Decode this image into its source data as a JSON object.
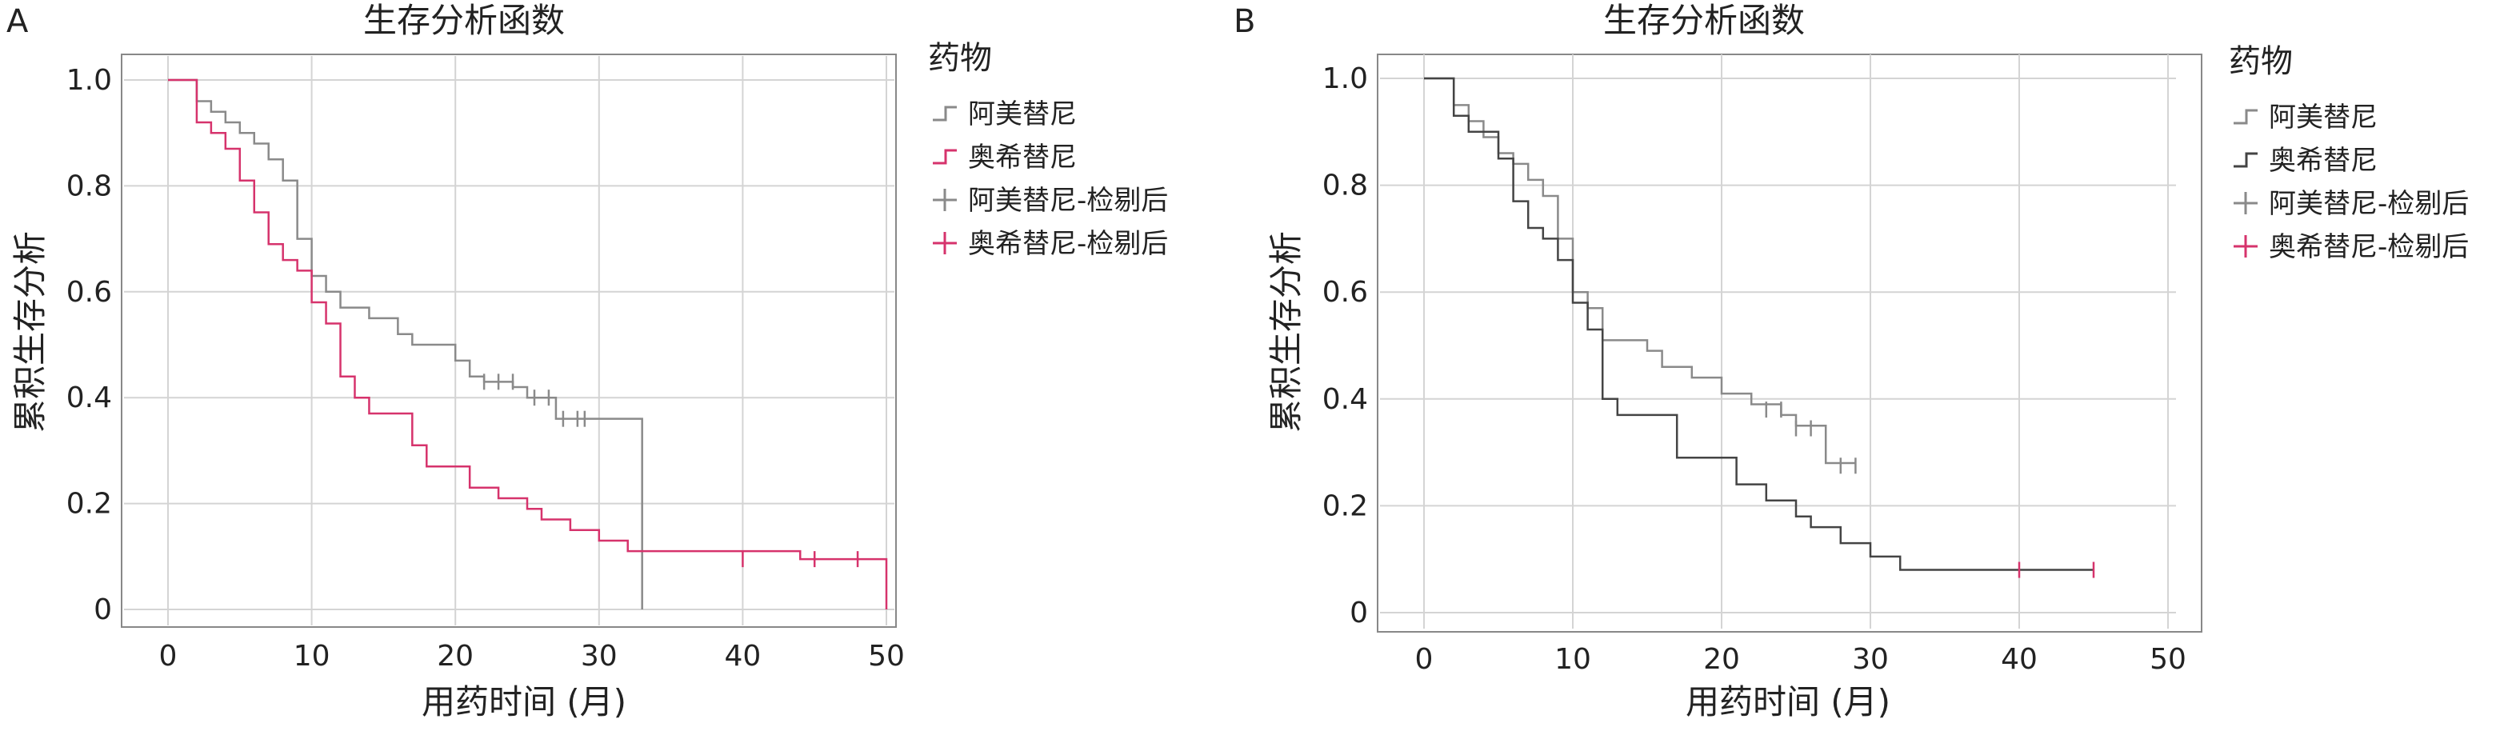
{
  "chart_data": [
    {
      "panel": "A",
      "type": "line",
      "title": "生存分析函数",
      "xlabel": "用药时间 (月)",
      "ylabel": "累积生存分析",
      "xlim": [
        0,
        50
      ],
      "ylim": [
        0,
        1.0
      ],
      "xticks": [
        0,
        10,
        20,
        30,
        40,
        50
      ],
      "yticks": [
        0,
        0.2,
        0.4,
        0.6,
        0.8,
        1.0
      ],
      "ytick_labels": [
        "0",
        "0.2",
        "0.4",
        "0.6",
        "0.8",
        "1.0"
      ],
      "grid": true,
      "legend": {
        "title": "药物",
        "position": "right",
        "entries": [
          {
            "label": "阿美替尼",
            "style": "step",
            "color": "#8a8a8a"
          },
          {
            "label": "奥希替尼",
            "style": "step",
            "color": "#d6336c"
          },
          {
            "label": "阿美替尼-检剔后",
            "style": "censor",
            "color": "#8a8a8a"
          },
          {
            "label": "奥希替尼-检剔后",
            "style": "censor",
            "color": "#d6336c"
          }
        ]
      },
      "series": [
        {
          "name": "阿美替尼",
          "color": "#8a8a8a",
          "steps": [
            [
              0,
              1.0
            ],
            [
              2,
              0.96
            ],
            [
              3,
              0.94
            ],
            [
              4,
              0.92
            ],
            [
              5,
              0.9
            ],
            [
              6,
              0.88
            ],
            [
              7,
              0.85
            ],
            [
              8,
              0.81
            ],
            [
              9,
              0.7
            ],
            [
              10,
              0.63
            ],
            [
              11,
              0.6
            ],
            [
              12,
              0.57
            ],
            [
              14,
              0.55
            ],
            [
              16,
              0.52
            ],
            [
              17,
              0.5
            ],
            [
              20,
              0.47
            ],
            [
              21,
              0.44
            ],
            [
              22,
              0.43
            ],
            [
              24,
              0.42
            ],
            [
              25,
              0.4
            ],
            [
              27,
              0.36
            ],
            [
              29,
              0.36
            ],
            [
              33,
              0.0
            ]
          ],
          "end_x": 33,
          "censored": [
            [
              22,
              0.43
            ],
            [
              23,
              0.43
            ],
            [
              24,
              0.43
            ],
            [
              25.5,
              0.4
            ],
            [
              26.5,
              0.4
            ],
            [
              27.5,
              0.36
            ],
            [
              28.5,
              0.36
            ],
            [
              29,
              0.36
            ]
          ]
        },
        {
          "name": "奥希替尼",
          "color": "#d6336c",
          "steps": [
            [
              0,
              1.0
            ],
            [
              2,
              0.92
            ],
            [
              3,
              0.9
            ],
            [
              4,
              0.87
            ],
            [
              5,
              0.81
            ],
            [
              6,
              0.75
            ],
            [
              7,
              0.69
            ],
            [
              8,
              0.66
            ],
            [
              9,
              0.64
            ],
            [
              10,
              0.58
            ],
            [
              11,
              0.54
            ],
            [
              12,
              0.44
            ],
            [
              13,
              0.4
            ],
            [
              14,
              0.37
            ],
            [
              17,
              0.31
            ],
            [
              18,
              0.27
            ],
            [
              21,
              0.23
            ],
            [
              23,
              0.21
            ],
            [
              25,
              0.19
            ],
            [
              26,
              0.17
            ],
            [
              28,
              0.15
            ],
            [
              30,
              0.13
            ],
            [
              32,
              0.11
            ],
            [
              44,
              0.095
            ],
            [
              50,
              0.0
            ]
          ],
          "end_x": 50,
          "censored": [
            [
              40,
              0.095
            ],
            [
              45,
              0.095
            ],
            [
              48,
              0.095
            ]
          ]
        }
      ]
    },
    {
      "panel": "B",
      "type": "line",
      "title": "生存分析函数",
      "xlabel": "用药时间 (月)",
      "ylabel": "累积生存分析",
      "xlim": [
        0,
        50
      ],
      "ylim": [
        0,
        1.0
      ],
      "xticks": [
        0,
        10,
        20,
        30,
        40,
        50
      ],
      "yticks": [
        0,
        0.2,
        0.4,
        0.6,
        0.8,
        1.0
      ],
      "ytick_labels": [
        "0",
        "0.2",
        "0.4",
        "0.6",
        "0.8",
        "1.0"
      ],
      "grid": true,
      "legend": {
        "title": "药物",
        "position": "right",
        "entries": [
          {
            "label": "阿美替尼",
            "style": "step",
            "color": "#8a8a8a"
          },
          {
            "label": "奥希替尼",
            "style": "step",
            "color": "#444444"
          },
          {
            "label": "阿美替尼-检剔后",
            "style": "censor",
            "color": "#8a8a8a"
          },
          {
            "label": "奥希替尼-检剔后",
            "style": "censor",
            "color": "#d6336c"
          }
        ]
      },
      "series": [
        {
          "name": "阿美替尼",
          "color": "#8a8a8a",
          "steps": [
            [
              0,
              1.0
            ],
            [
              2,
              0.95
            ],
            [
              3,
              0.92
            ],
            [
              4,
              0.89
            ],
            [
              5,
              0.86
            ],
            [
              6,
              0.84
            ],
            [
              7,
              0.81
            ],
            [
              8,
              0.78
            ],
            [
              9,
              0.7
            ],
            [
              10,
              0.6
            ],
            [
              11,
              0.57
            ],
            [
              12,
              0.51
            ],
            [
              15,
              0.49
            ],
            [
              16,
              0.46
            ],
            [
              18,
              0.44
            ],
            [
              20,
              0.41
            ],
            [
              22,
              0.39
            ],
            [
              24,
              0.37
            ],
            [
              25,
              0.35
            ],
            [
              27,
              0.28
            ],
            [
              29,
              0.28
            ]
          ],
          "end_x": 29,
          "censored": [
            [
              23,
              0.38
            ],
            [
              24,
              0.38
            ],
            [
              25,
              0.345
            ],
            [
              26,
              0.345
            ],
            [
              28,
              0.275
            ],
            [
              29,
              0.275
            ]
          ]
        },
        {
          "name": "奥希替尼",
          "color": "#444444",
          "hl_color": "#d6336c",
          "steps": [
            [
              0,
              1.0
            ],
            [
              2,
              0.93
            ],
            [
              3,
              0.9
            ],
            [
              5,
              0.85
            ],
            [
              6,
              0.77
            ],
            [
              7,
              0.72
            ],
            [
              8,
              0.7
            ],
            [
              9,
              0.66
            ],
            [
              10,
              0.58
            ],
            [
              11,
              0.53
            ],
            [
              12,
              0.4
            ],
            [
              13,
              0.37
            ],
            [
              17,
              0.29
            ],
            [
              21,
              0.24
            ],
            [
              23,
              0.21
            ],
            [
              25,
              0.18
            ],
            [
              26,
              0.16
            ],
            [
              28,
              0.13
            ],
            [
              30,
              0.105
            ],
            [
              32,
              0.08
            ],
            [
              45,
              0.08
            ]
          ],
          "end_x": 45,
          "censored": [
            [
              40,
              0.08
            ],
            [
              45,
              0.08
            ]
          ]
        }
      ]
    }
  ]
}
